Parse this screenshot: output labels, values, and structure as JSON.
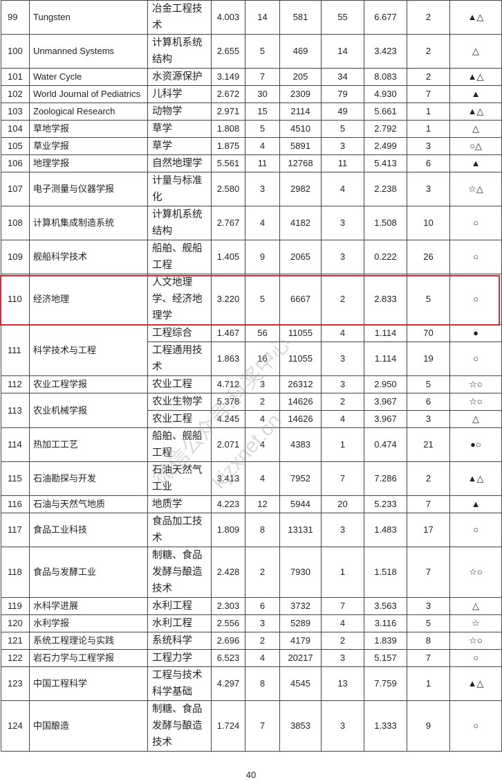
{
  "rows": [
    {
      "no": "99",
      "name": "Tungsten",
      "subs": [
        {
          "subject": "冶金工程技术",
          "v1": "4.003",
          "v2": "14",
          "v3": "581",
          "v4": "55",
          "v5": "6.677",
          "v6": "2",
          "mark": "▲△"
        }
      ]
    },
    {
      "no": "100",
      "name": "Unmanned Systems",
      "subs": [
        {
          "subject": "计算机系统结构",
          "v1": "2.655",
          "v2": "5",
          "v3": "469",
          "v4": "14",
          "v5": "3.423",
          "v6": "2",
          "mark": "△"
        }
      ]
    },
    {
      "no": "101",
      "name": "Water Cycle",
      "subs": [
        {
          "subject": "水资源保护",
          "v1": "3.149",
          "v2": "7",
          "v3": "205",
          "v4": "34",
          "v5": "8.083",
          "v6": "2",
          "mark": "▲△"
        }
      ]
    },
    {
      "no": "102",
      "name": "World Journal of Pediatrics",
      "subs": [
        {
          "subject": "儿科学",
          "v1": "2.672",
          "v2": "30",
          "v3": "2309",
          "v4": "79",
          "v5": "4.930",
          "v6": "7",
          "mark": "▲"
        }
      ]
    },
    {
      "no": "103",
      "name": "Zoological Research",
      "subs": [
        {
          "subject": "动物学",
          "v1": "2.971",
          "v2": "15",
          "v3": "2114",
          "v4": "49",
          "v5": "5.661",
          "v6": "1",
          "mark": "▲△"
        }
      ]
    },
    {
      "no": "104",
      "name": "草地学报",
      "subs": [
        {
          "subject": "草学",
          "v1": "1.808",
          "v2": "5",
          "v3": "4510",
          "v4": "5",
          "v5": "2.792",
          "v6": "1",
          "mark": "△"
        }
      ]
    },
    {
      "no": "105",
      "name": "草业学报",
      "subs": [
        {
          "subject": "草学",
          "v1": "1.875",
          "v2": "4",
          "v3": "5891",
          "v4": "3",
          "v5": "2.499",
          "v6": "3",
          "mark": "○△"
        }
      ]
    },
    {
      "no": "106",
      "name": "地理学报",
      "subs": [
        {
          "subject": "自然地理学",
          "v1": "5.561",
          "v2": "11",
          "v3": "12768",
          "v4": "11",
          "v5": "5.413",
          "v6": "6",
          "mark": "▲"
        }
      ]
    },
    {
      "no": "107",
      "name": "电子测量与仪器学报",
      "subs": [
        {
          "subject": "计量与标准化",
          "v1": "2.580",
          "v2": "3",
          "v3": "2982",
          "v4": "4",
          "v5": "2.238",
          "v6": "3",
          "mark": "☆△"
        }
      ]
    },
    {
      "no": "108",
      "name": "计算机集成制造系统",
      "subs": [
        {
          "subject": "计算机系统结构",
          "v1": "2.767",
          "v2": "4",
          "v3": "4182",
          "v4": "3",
          "v5": "1.508",
          "v6": "10",
          "mark": "○"
        }
      ]
    },
    {
      "no": "109",
      "name": "舰船科学技术",
      "subs": [
        {
          "subject": "船舶、舰船工程",
          "v1": "1.405",
          "v2": "9",
          "v3": "2065",
          "v4": "3",
          "v5": "0.222",
          "v6": "26",
          "mark": "○"
        }
      ]
    },
    {
      "no": "110",
      "name": "经济地理",
      "highlighted": true,
      "subs": [
        {
          "subject": "人文地理学、经济地理学",
          "v1": "3.220",
          "v2": "5",
          "v3": "6667",
          "v4": "2",
          "v5": "2.833",
          "v6": "5",
          "mark": "○"
        }
      ]
    },
    {
      "no": "111",
      "name": "科学技术与工程",
      "subs": [
        {
          "subject": "工程综合",
          "v1": "1.467",
          "v2": "56",
          "v3": "11055",
          "v4": "4",
          "v5": "1.114",
          "v6": "70",
          "mark": "●"
        },
        {
          "subject": "工程通用技术",
          "v1": "1.863",
          "v2": "16",
          "v3": "11055",
          "v4": "3",
          "v5": "1.114",
          "v6": "19",
          "mark": "○"
        }
      ]
    },
    {
      "no": "112",
      "name": "农业工程学报",
      "subs": [
        {
          "subject": "农业工程",
          "v1": "4.712",
          "v2": "3",
          "v3": "26312",
          "v4": "3",
          "v5": "2.950",
          "v6": "5",
          "mark": "☆○"
        }
      ]
    },
    {
      "no": "113",
      "name": "农业机械学报",
      "subs": [
        {
          "subject": "农业生物学",
          "v1": "5.378",
          "v2": "2",
          "v3": "14626",
          "v4": "2",
          "v5": "3.967",
          "v6": "6",
          "mark": "☆○"
        },
        {
          "subject": "农业工程",
          "v1": "4.245",
          "v2": "4",
          "v3": "14626",
          "v4": "4",
          "v5": "3.967",
          "v6": "3",
          "mark": "△"
        }
      ]
    },
    {
      "no": "114",
      "name": "热加工工艺",
      "subs": [
        {
          "subject": "船舶、舰船工程",
          "v1": "2.071",
          "v2": "4",
          "v3": "4383",
          "v4": "1",
          "v5": "0.474",
          "v6": "21",
          "mark": "●○"
        }
      ]
    },
    {
      "no": "115",
      "name": "石油勘探与开发",
      "subs": [
        {
          "subject": "石油天然气工业",
          "v1": "3.413",
          "v2": "4",
          "v3": "7952",
          "v4": "7",
          "v5": "7.286",
          "v6": "2",
          "mark": "▲△"
        }
      ]
    },
    {
      "no": "116",
      "name": "石油与天然气地质",
      "subs": [
        {
          "subject": "地质学",
          "v1": "4.223",
          "v2": "12",
          "v3": "5944",
          "v4": "20",
          "v5": "5.233",
          "v6": "7",
          "mark": "▲"
        }
      ]
    },
    {
      "no": "117",
      "name": "食品工业科技",
      "subs": [
        {
          "subject": "食品加工技术",
          "v1": "1.809",
          "v2": "8",
          "v3": "13131",
          "v4": "3",
          "v5": "1.483",
          "v6": "17",
          "mark": "○"
        }
      ]
    },
    {
      "no": "118",
      "name": "食品与发酵工业",
      "subs": [
        {
          "subject": "制糖、食品发酵与酿造技术",
          "v1": "2.428",
          "v2": "2",
          "v3": "7930",
          "v4": "1",
          "v5": "1.518",
          "v6": "7",
          "mark": "☆○"
        }
      ]
    },
    {
      "no": "119",
      "name": "水科学进展",
      "subs": [
        {
          "subject": "水利工程",
          "v1": "2.303",
          "v2": "6",
          "v3": "3732",
          "v4": "7",
          "v5": "3.563",
          "v6": "3",
          "mark": "△"
        }
      ]
    },
    {
      "no": "120",
      "name": "水利学报",
      "subs": [
        {
          "subject": "水利工程",
          "v1": "2.556",
          "v2": "3",
          "v3": "5289",
          "v4": "4",
          "v5": "3.116",
          "v6": "5",
          "mark": "☆"
        }
      ]
    },
    {
      "no": "121",
      "name": "系统工程理论与实践",
      "subs": [
        {
          "subject": "系统科学",
          "v1": "2.696",
          "v2": "2",
          "v3": "4179",
          "v4": "2",
          "v5": "1.839",
          "v6": "8",
          "mark": "☆○"
        }
      ]
    },
    {
      "no": "122",
      "name": "岩石力学与工程学报",
      "subs": [
        {
          "subject": "工程力学",
          "v1": "6.523",
          "v2": "4",
          "v3": "20217",
          "v4": "3",
          "v5": "5.157",
          "v6": "7",
          "mark": "○"
        }
      ]
    },
    {
      "no": "123",
      "name": "中国工程科学",
      "subs": [
        {
          "subject": "工程与技术科学基础",
          "v1": "4.297",
          "v2": "8",
          "v3": "4545",
          "v4": "13",
          "v5": "7.759",
          "v6": "1",
          "mark": "▲△"
        }
      ]
    },
    {
      "no": "124",
      "name": "中国酿造",
      "subs": [
        {
          "subject": "制糖、食品发酵与酿造技术",
          "v1": "1.724",
          "v2": "7",
          "v3": "3853",
          "v4": "3",
          "v5": "1.333",
          "v6": "9",
          "mark": "○"
        }
      ]
    }
  ],
  "watermark": {
    "line1": "微信公众号:科奖中心",
    "line2": "kjzxnet.cn"
  },
  "page_number": "40",
  "highlight_color": "#e0262b"
}
